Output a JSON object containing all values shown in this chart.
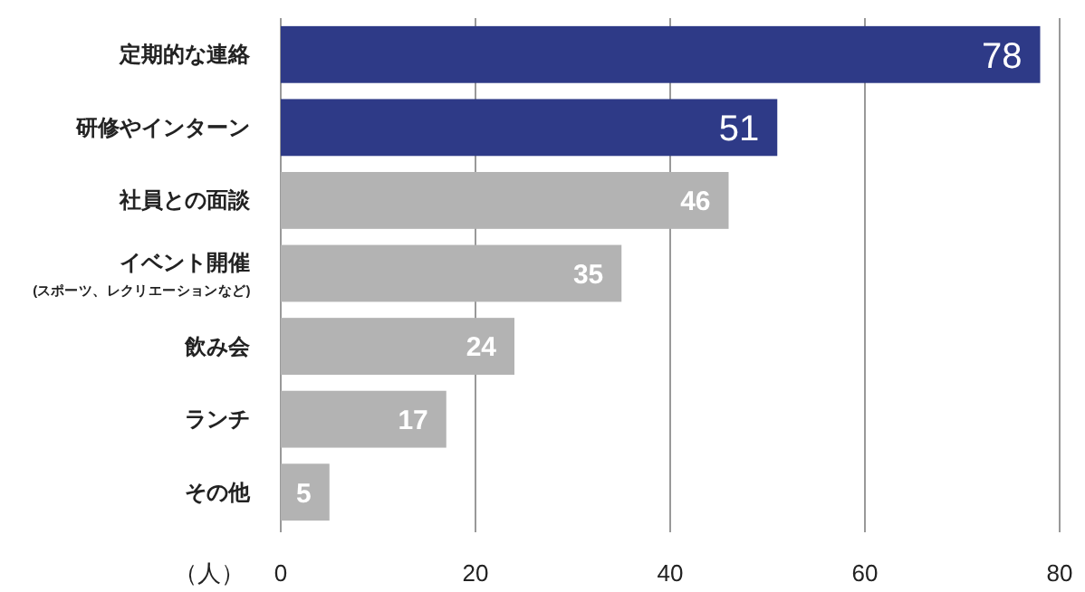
{
  "chart_data": {
    "type": "bar",
    "orientation": "horizontal",
    "xlabel": "（人）",
    "categories": [
      "定期的な連絡",
      "研修やインターン",
      "社員との面談",
      "イベント開催\n(スポーツ、レクリエーションなど)",
      "飲み会",
      "ランチ",
      "その他"
    ],
    "values": [
      78,
      51,
      46,
      35,
      24,
      17,
      5
    ],
    "colors": [
      "#2e3a87",
      "#2e3a87",
      "#b3b3b3",
      "#b3b3b3",
      "#b3b3b3",
      "#b3b3b3",
      "#b3b3b3"
    ],
    "xlim": [
      0,
      80
    ],
    "xticks": [
      0,
      20,
      40,
      60,
      80
    ],
    "grid": "x",
    "data_labels": true
  }
}
